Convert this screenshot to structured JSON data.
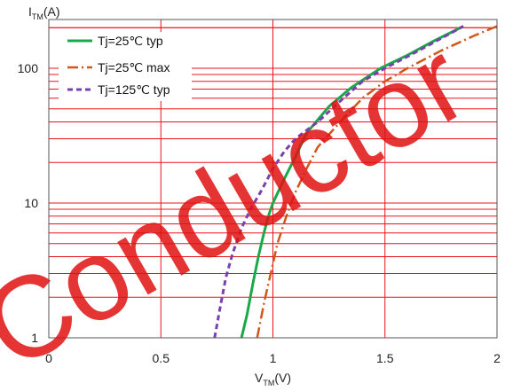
{
  "chart_data": {
    "type": "line",
    "xlabel": "V",
    "xlabel_sub": "TM",
    "xlabel_unit": "(V)",
    "ylabel": "I",
    "ylabel_sub": "TM",
    "ylabel_unit": "(A)",
    "xlim": [
      0,
      2
    ],
    "ylim": [
      1,
      230
    ],
    "yscale": "log",
    "x_ticks": [
      {
        "value": 0,
        "label": "0"
      },
      {
        "value": 0.5,
        "label": "0.5"
      },
      {
        "value": 1,
        "label": "1"
      },
      {
        "value": 1.5,
        "label": "1.5"
      },
      {
        "value": 2,
        "label": "2"
      }
    ],
    "y_ticks": [
      {
        "value": 1,
        "label": "1"
      },
      {
        "value": 10,
        "label": "10"
      },
      {
        "value": 100,
        "label": "100"
      }
    ],
    "grid": true,
    "grid_color": "#e8141b",
    "legend_position": "top-left",
    "series": [
      {
        "name": "Tj=25℃ typ",
        "color": "#1aa84a",
        "dash": "solid",
        "points": [
          [
            0.86,
            1
          ],
          [
            0.885,
            1.5
          ],
          [
            0.91,
            2.5
          ],
          [
            0.935,
            4
          ],
          [
            0.96,
            6
          ],
          [
            0.98,
            8
          ],
          [
            1.0,
            10
          ],
          [
            1.05,
            15
          ],
          [
            1.1,
            22
          ],
          [
            1.15,
            33
          ],
          [
            1.25,
            52
          ],
          [
            1.35,
            72
          ],
          [
            1.48,
            100
          ],
          [
            1.6,
            125
          ],
          [
            1.72,
            160
          ],
          [
            1.85,
            205
          ]
        ]
      },
      {
        "name": "Tj=25℃ max",
        "color": "#d2561a",
        "dash": "dashdot",
        "points": [
          [
            0.93,
            1
          ],
          [
            0.96,
            1.8
          ],
          [
            0.99,
            3
          ],
          [
            1.02,
            5
          ],
          [
            1.06,
            8
          ],
          [
            1.1,
            12
          ],
          [
            1.15,
            18
          ],
          [
            1.2,
            26
          ],
          [
            1.3,
            40
          ],
          [
            1.4,
            60
          ],
          [
            1.5,
            80
          ],
          [
            1.6,
            100
          ],
          [
            1.75,
            135
          ],
          [
            1.9,
            175
          ],
          [
            2.0,
            205
          ]
        ]
      },
      {
        "name": "Tj=125℃ typ",
        "color": "#7b3fb0",
        "dash": "dash",
        "points": [
          [
            0.74,
            1
          ],
          [
            0.765,
            1.7
          ],
          [
            0.79,
            2.8
          ],
          [
            0.82,
            4.2
          ],
          [
            0.86,
            6.5
          ],
          [
            0.9,
            9
          ],
          [
            0.95,
            12.5
          ],
          [
            1.0,
            18
          ],
          [
            1.05,
            24
          ],
          [
            1.1,
            30
          ],
          [
            1.2,
            40
          ],
          [
            1.3,
            57
          ],
          [
            1.4,
            80
          ],
          [
            1.5,
            100
          ],
          [
            1.65,
            135
          ],
          [
            1.85,
            205
          ]
        ]
      }
    ]
  },
  "watermark": {
    "text": "Conductor",
    "color": "#e01010"
  }
}
